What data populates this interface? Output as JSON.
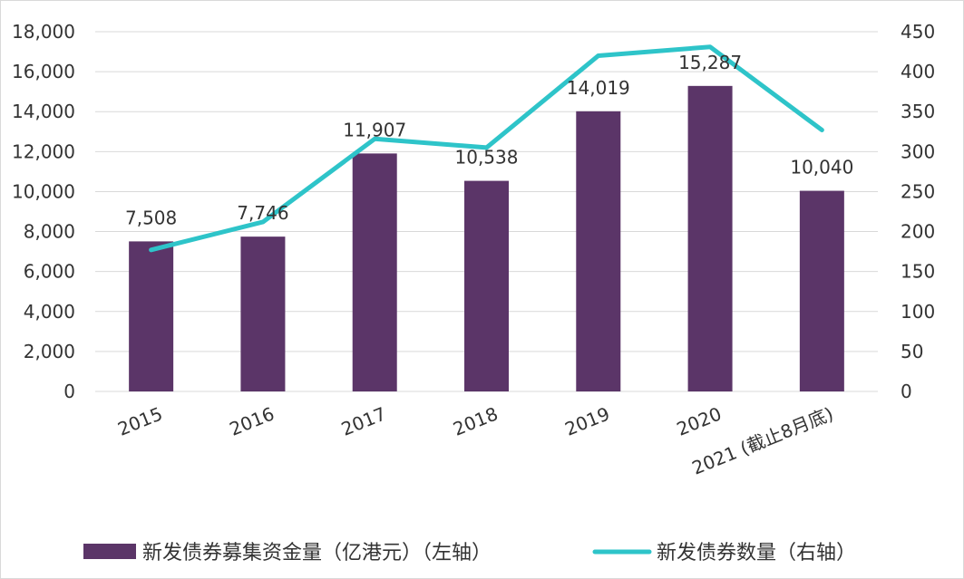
{
  "chart_data": {
    "type": "bar",
    "categories": [
      "2015",
      "2016",
      "2017",
      "2018",
      "2019",
      "2020",
      "2021 (截止8月底)"
    ],
    "series": [
      {
        "name": "新发债券募集资金量（亿港元）（左轴）",
        "kind": "bar",
        "axis": "left",
        "color": "#5b3568",
        "values": [
          7508,
          7746,
          11907,
          10538,
          14019,
          15287,
          10040
        ],
        "labels": [
          "7,508",
          "7,746",
          "11,907",
          "10,538",
          "14,019",
          "15,287",
          "10,040"
        ]
      },
      {
        "name": "新发债券数量（右轴）",
        "kind": "line",
        "axis": "right",
        "color": "#2ec4c9",
        "values": [
          177,
          212,
          316,
          305,
          420,
          431,
          327
        ]
      }
    ],
    "y_left": {
      "ylim": [
        0,
        18000
      ],
      "ticks": [
        "0",
        "2,000",
        "4,000",
        "6,000",
        "8,000",
        "10,000",
        "12,000",
        "14,000",
        "16,000",
        "18,000"
      ]
    },
    "y_right": {
      "ylim": [
        0,
        450
      ],
      "ticks": [
        "0",
        "50",
        "100",
        "150",
        "200",
        "250",
        "300",
        "350",
        "400",
        "450"
      ]
    },
    "grid": true,
    "legend": "bottom"
  }
}
